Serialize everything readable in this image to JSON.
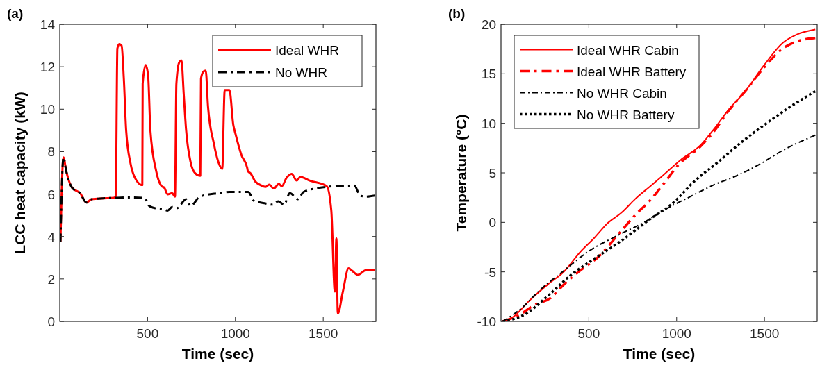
{
  "chart_data": [
    {
      "type": "line",
      "title": "(a)",
      "xlabel": "Time (sec)",
      "ylabel": "LCC heat capacity (kW)",
      "xlim": [
        0,
        1800
      ],
      "xticks": [
        500,
        1000,
        1500
      ],
      "ylim": [
        0,
        14
      ],
      "yticks": [
        0,
        2,
        4,
        6,
        8,
        10,
        12,
        14
      ],
      "grid": false,
      "legend": "top right",
      "series": [
        {
          "name": "Ideal WHR",
          "color": "#ff0000",
          "line_style": "solid",
          "x": [
            4,
            21,
            37,
            70,
            116,
            152,
            181,
            247,
            306,
            319,
            328,
            339,
            352,
            365,
            378,
            404,
            437,
            470,
            472,
            489,
            503,
            516,
            549,
            581,
            595,
            614,
            640,
            656,
            664,
            680,
            693,
            706,
            719,
            745,
            772,
            800,
            804,
            818,
            831,
            844,
            877,
            903,
            925,
            939,
            966,
            988,
            1001,
            1034,
            1067,
            1071,
            1087,
            1113,
            1139,
            1172,
            1192,
            1218,
            1247,
            1264,
            1290,
            1320,
            1349,
            1369,
            1428,
            1520,
            1546,
            1566,
            1575,
            1583,
            1612,
            1644,
            1664,
            1697,
            1743,
            1795
          ],
          "values": [
            3.75,
            7.73,
            7.08,
            6.3,
            6.04,
            5.6,
            5.76,
            5.8,
            5.82,
            5.88,
            12.86,
            13.07,
            13.0,
            11.4,
            9.0,
            7.4,
            6.64,
            6.42,
            11.2,
            12.08,
            11.6,
            9.0,
            7.08,
            6.36,
            6.3,
            5.99,
            6.04,
            5.88,
            11.2,
            12.2,
            12.3,
            10.68,
            9.05,
            7.5,
            6.97,
            6.86,
            11.44,
            11.77,
            11.82,
            10.13,
            8.39,
            7.51,
            7.19,
            10.9,
            10.9,
            9.26,
            8.82,
            7.84,
            7.24,
            7.08,
            6.97,
            6.59,
            6.44,
            6.34,
            6.44,
            6.26,
            6.48,
            6.37,
            6.75,
            6.95,
            6.64,
            6.8,
            6.62,
            6.37,
            5.22,
            1.41,
            3.92,
            0.37,
            1.41,
            2.5,
            2.39,
            2.19,
            2.41,
            2.41
          ]
        },
        {
          "name": "No WHR",
          "color": "#000000",
          "line_style": "dashed",
          "x": [
            4,
            21,
            37,
            70,
            116,
            152,
            181,
            247,
            306,
            390,
            483,
            509,
            535,
            588,
            614,
            640,
            667,
            719,
            745,
            798,
            903,
            968,
            1073,
            1106,
            1165,
            1211,
            1244,
            1277,
            1310,
            1356,
            1388,
            1493,
            1559,
            1677,
            1710,
            1743,
            1795
          ],
          "values": [
            3.75,
            7.73,
            7.08,
            6.3,
            6.04,
            5.6,
            5.76,
            5.8,
            5.82,
            5.84,
            5.82,
            5.44,
            5.35,
            5.28,
            5.22,
            5.39,
            5.33,
            5.76,
            5.44,
            5.88,
            6.04,
            6.1,
            6.1,
            5.68,
            5.57,
            5.5,
            5.66,
            5.5,
            6.04,
            5.76,
            6.1,
            6.31,
            6.37,
            6.4,
            5.93,
            5.88,
            5.93
          ]
        }
      ]
    },
    {
      "type": "line",
      "title": "(b)",
      "xlabel": "Time (sec)",
      "ylabel": "Temperature (°C)",
      "xlim": [
        0,
        1800
      ],
      "xticks": [
        500,
        1000,
        1500
      ],
      "ylim": [
        -10,
        20
      ],
      "yticks": [
        -10,
        -5,
        0,
        5,
        10,
        15,
        20
      ],
      "grid": false,
      "legend": "top left",
      "series": [
        {
          "name": "Ideal WHR Cabin",
          "color": "#ff0000",
          "line_style": "solid",
          "x": [
            10,
            70,
            162,
            267,
            359,
            451,
            530,
            608,
            686,
            765,
            843,
            921,
            1026,
            1133,
            1211,
            1290,
            1395,
            1500,
            1605,
            1683,
            1789
          ],
          "values": [
            -10,
            -9.53,
            -7.9,
            -6.26,
            -4.97,
            -2.99,
            -1.59,
            -0.07,
            0.98,
            2.38,
            3.55,
            4.72,
            6.35,
            7.75,
            9.39,
            11.25,
            13.35,
            15.92,
            18.14,
            18.96,
            19.47
          ]
        },
        {
          "name": "Ideal WHR Battery",
          "color": "#ff0000",
          "line_style": "dashed",
          "x": [
            10,
            109,
            188,
            280,
            359,
            451,
            556,
            661,
            765,
            857,
            921,
            1014,
            1133,
            1211,
            1290,
            1395,
            1500,
            1605,
            1683,
            1789
          ],
          "values": [
            -10,
            -9.3,
            -8.36,
            -7.66,
            -6.26,
            -4.86,
            -3.46,
            -1.35,
            0.75,
            2.38,
            3.78,
            5.88,
            7.63,
            9.15,
            11.14,
            13.35,
            15.69,
            17.56,
            18.26,
            18.61
          ]
        },
        {
          "name": "No WHR Cabin",
          "color": "#000000",
          "line_style": "dashed",
          "x": [
            10,
            122,
            214,
            359,
            503,
            661,
            819,
            950,
            1080,
            1211,
            1343,
            1474,
            1605,
            1789
          ],
          "values": [
            -10,
            -8.59,
            -6.96,
            -4.86,
            -2.87,
            -1.35,
            0.05,
            1.45,
            2.62,
            3.78,
            4.72,
            5.88,
            7.28,
            8.8
          ]
        },
        {
          "name": "No WHR Battery",
          "color": "#000000",
          "line_style": "dotted",
          "x": [
            10,
            135,
            267,
            398,
            530,
            688,
            845,
            976,
            1107,
            1238,
            1369,
            1500,
            1631,
            1789
          ],
          "values": [
            -10,
            -9.3,
            -7.42,
            -5.32,
            -3.69,
            -1.82,
            0.28,
            1.91,
            4.25,
            6.12,
            8.1,
            9.85,
            11.49,
            13.24
          ]
        }
      ]
    }
  ]
}
